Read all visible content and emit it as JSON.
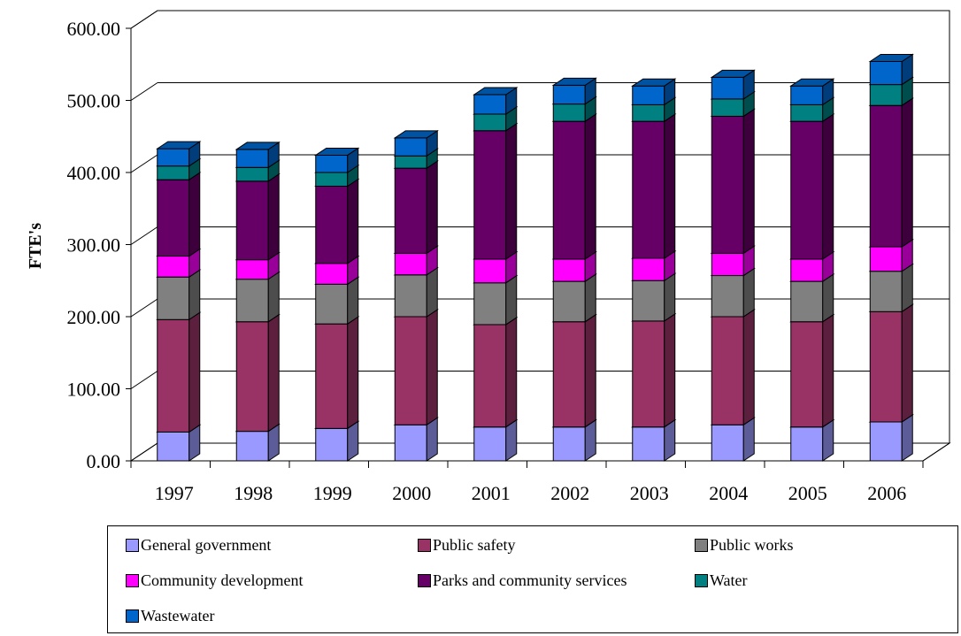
{
  "chart_data": {
    "type": "bar",
    "stacked": true,
    "three_d": true,
    "title": "",
    "xlabel": "",
    "ylabel": "FTE's",
    "ylim": [
      0,
      600
    ],
    "ytick_step": 100,
    "ytick_labels": [
      "0.00",
      "100.00",
      "200.00",
      "300.00",
      "400.00",
      "500.00",
      "600.00"
    ],
    "grid": true,
    "legend_position": "bottom",
    "categories": [
      "1997",
      "1998",
      "1999",
      "2000",
      "2001",
      "2002",
      "2003",
      "2004",
      "2005",
      "2006"
    ],
    "series": [
      {
        "name": "General government",
        "color": "#9999FF",
        "values": [
          40,
          41,
          45,
          50,
          47,
          47,
          47,
          50,
          47,
          54
        ]
      },
      {
        "name": "Public safety",
        "color": "#993366",
        "values": [
          156,
          152,
          145,
          150,
          142,
          146,
          147,
          150,
          146,
          153
        ]
      },
      {
        "name": "Public works",
        "color": "#808080",
        "values": [
          59,
          59,
          55,
          58,
          58,
          56,
          56,
          57,
          56,
          56
        ]
      },
      {
        "name": "Community development",
        "color": "#FF00FF",
        "values": [
          29,
          27,
          29,
          30,
          33,
          31,
          31,
          31,
          31,
          34
        ]
      },
      {
        "name": "Parks and community services",
        "color": "#660066",
        "values": [
          106,
          109,
          107,
          118,
          178,
          191,
          190,
          190,
          191,
          196
        ]
      },
      {
        "name": "Water",
        "color": "#008080",
        "values": [
          19,
          19,
          19,
          17,
          23,
          24,
          23,
          24,
          23,
          29
        ]
      },
      {
        "name": "Wastewater",
        "color": "#0066CC",
        "values": [
          24,
          25,
          24,
          25,
          27,
          26,
          26,
          30,
          26,
          32
        ]
      }
    ]
  }
}
